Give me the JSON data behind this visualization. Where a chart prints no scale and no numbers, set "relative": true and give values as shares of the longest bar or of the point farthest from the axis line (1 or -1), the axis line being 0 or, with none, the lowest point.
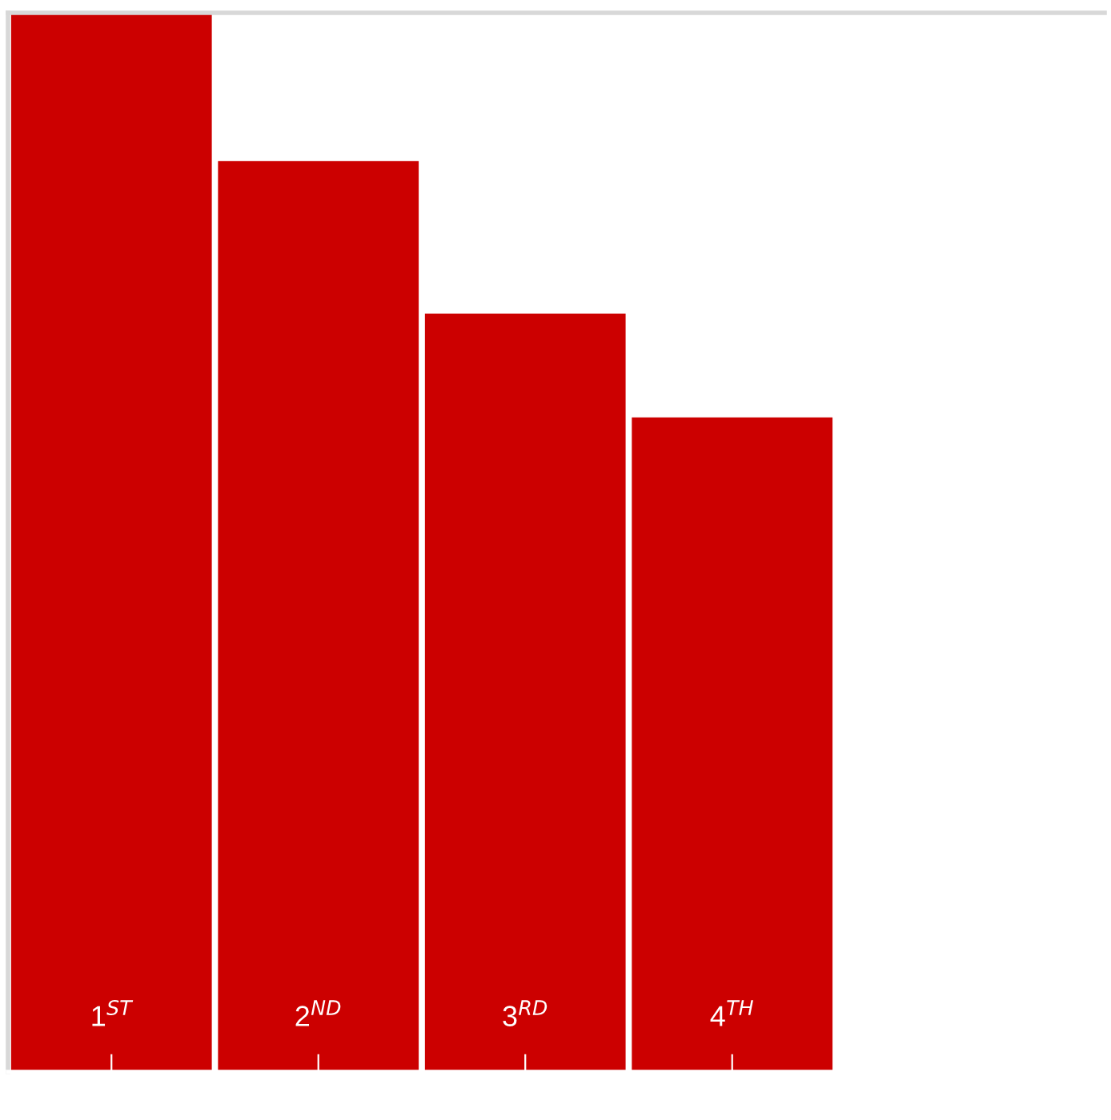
{
  "chart_data": {
    "type": "bar",
    "relative": true,
    "categories": [
      "1$^{ST}$",
      "2$^{ND}$",
      "3$^{RD}$",
      "4$^{TH}$"
    ],
    "values": [
      1,
      0.86,
      0.716,
      0.618
    ],
    "color": "#cc0000"
  }
}
